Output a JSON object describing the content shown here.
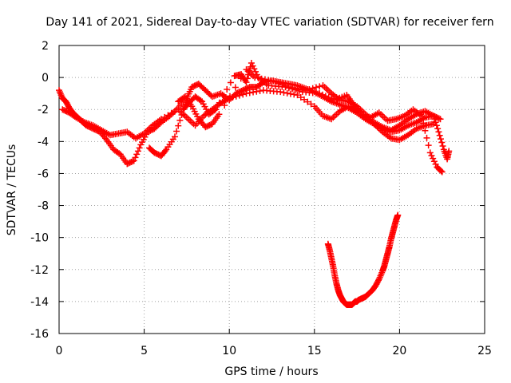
{
  "chart_data": {
    "type": "scatter",
    "title": "Day 141 of 2021, Sidereal Day-to-day VTEC variation (SDTVAR) for receiver fern",
    "xlabel": "GPS time / hours",
    "ylabel": "SDTVAR / TECUs",
    "xlim": [
      0,
      25
    ],
    "ylim": [
      -16,
      2
    ],
    "grid": true,
    "xticks": [
      0,
      5,
      10,
      15,
      20,
      25
    ],
    "xtick_labels": [
      "0",
      "5",
      "10",
      "15",
      "20",
      "25"
    ],
    "yticks": [
      2,
      0,
      -2,
      -4,
      -6,
      -8,
      -10,
      -12,
      -14,
      -16
    ],
    "ytick_labels": [
      "2",
      "0",
      "-2",
      "-4",
      "-6",
      "-8",
      "-10",
      "-12",
      "-14",
      "-16"
    ],
    "marker": "+",
    "marker_color": "#ff0000",
    "series": [
      {
        "name": "upper_trace_a",
        "x": [
          0.0,
          0.2,
          0.4,
          0.6,
          0.8,
          1.0,
          1.3,
          1.6,
          2.0,
          2.4,
          2.8,
          3.2,
          3.6,
          4.0,
          4.4,
          4.8,
          5.2,
          5.6,
          6.0,
          6.5,
          7.0,
          7.5,
          7.8,
          8.2,
          8.6,
          9.0,
          9.5,
          10.0,
          10.4,
          10.8,
          11.2,
          11.6,
          12.0,
          12.5,
          13.0,
          13.5,
          14.0,
          14.5,
          15.0,
          15.5,
          16.0,
          16.5,
          17.0,
          17.5,
          18.0,
          18.5,
          19.0,
          19.5,
          20.0,
          20.5,
          21.0,
          21.5,
          22.0,
          22.4
        ],
        "y": [
          -0.8,
          -1.3,
          -1.5,
          -1.9,
          -2.2,
          -2.4,
          -2.7,
          -3.0,
          -3.2,
          -3.4,
          -3.9,
          -4.5,
          -4.8,
          -5.4,
          -5.2,
          -4.2,
          -3.4,
          -3.2,
          -2.8,
          -2.4,
          -1.9,
          -1.3,
          -0.6,
          -0.4,
          -0.8,
          -1.2,
          -1.0,
          -1.4,
          -1.0,
          -0.8,
          -0.6,
          -0.6,
          -0.3,
          -0.2,
          -0.3,
          -0.4,
          -0.5,
          -0.7,
          -0.9,
          -1.2,
          -1.5,
          -1.7,
          -1.9,
          -2.2,
          -2.6,
          -2.9,
          -3.2,
          -3.4,
          -3.3,
          -3.0,
          -2.8,
          -2.5,
          -2.4,
          -2.6
        ]
      },
      {
        "name": "upper_trace_b",
        "x": [
          0.2,
          0.6,
          1.0,
          1.5,
          2.0,
          2.5,
          3.0,
          3.5,
          4.0,
          4.5,
          5.0,
          5.5,
          6.0,
          7.0,
          7.5,
          8.0,
          8.5,
          9.0,
          9.5,
          10.0,
          11.0,
          12.0,
          13.0,
          14.0,
          15.0,
          15.5,
          16.0,
          16.5,
          17.0,
          17.5,
          18.0,
          18.5,
          19.0,
          19.5,
          20.0,
          20.5,
          21.0,
          21.5,
          22.0
        ],
        "y": [
          -2.0,
          -2.2,
          -2.5,
          -2.8,
          -3.0,
          -3.3,
          -3.6,
          -3.5,
          -3.4,
          -3.8,
          -3.5,
          -3.0,
          -2.6,
          -2.0,
          -2.5,
          -3.0,
          -2.4,
          -2.0,
          -1.6,
          -1.3,
          -1.0,
          -0.8,
          -0.9,
          -1.1,
          -1.8,
          -2.4,
          -2.6,
          -2.1,
          -1.8,
          -2.0,
          -2.5,
          -2.9,
          -3.4,
          -3.8,
          -3.9,
          -3.6,
          -3.2,
          -3.0,
          -2.9
        ]
      },
      {
        "name": "upper_trace_c",
        "x": [
          7.0,
          7.4,
          7.8,
          8.2,
          8.6,
          9.0,
          9.4,
          11.0,
          11.5,
          12.5,
          13.5,
          14.5,
          15.5,
          16.0,
          16.5,
          17.0,
          17.5,
          18.0,
          18.5,
          19.0,
          19.5,
          20.0,
          20.5,
          21.0,
          21.5,
          22.0,
          22.3,
          22.6,
          22.8,
          22.9
        ],
        "y": [
          -1.5,
          -1.2,
          -1.8,
          -2.6,
          -3.1,
          -2.9,
          -2.3,
          0.5,
          0.0,
          -0.2,
          -0.6,
          -0.8,
          -0.5,
          -1.0,
          -1.4,
          -1.5,
          -1.8,
          -2.3,
          -2.8,
          -3.1,
          -3.3,
          -3.0,
          -2.6,
          -2.3,
          -2.1,
          -2.4,
          -3.4,
          -4.5,
          -5.1,
          -4.6
        ]
      },
      {
        "name": "upper_trace_d",
        "x": [
          5.3,
          5.6,
          6.0,
          6.3,
          6.8,
          7.3,
          7.6,
          8.0,
          8.4,
          8.8,
          9.2,
          10.3,
          10.7,
          11.0,
          11.3,
          11.7,
          12.3,
          13.3,
          14.3,
          15.3,
          16.2,
          16.9,
          17.3,
          17.8,
          18.3,
          18.8,
          19.3,
          19.8,
          20.3,
          20.8,
          21.3,
          21.8,
          22.2,
          22.5
        ],
        "y": [
          -4.4,
          -4.7,
          -4.9,
          -4.5,
          -3.7,
          -2.0,
          -1.6,
          -1.2,
          -1.5,
          -2.3,
          -2.0,
          0.1,
          0.2,
          -0.3,
          0.9,
          0.0,
          -0.5,
          -0.6,
          -0.9,
          -1.0,
          -1.4,
          -1.1,
          -1.7,
          -2.3,
          -2.5,
          -2.2,
          -2.7,
          -2.6,
          -2.4,
          -2.0,
          -2.4,
          -4.7,
          -5.6,
          -5.9
        ]
      },
      {
        "name": "lower_trace",
        "x": [
          15.8,
          15.9,
          16.0,
          16.1,
          16.2,
          16.3,
          16.4,
          16.5,
          16.6,
          16.7,
          16.8,
          16.9,
          17.0,
          17.1,
          17.2,
          17.3,
          17.4,
          17.5,
          17.6,
          17.8,
          18.0,
          18.2,
          18.4,
          18.6,
          18.8,
          19.0,
          19.1,
          19.2,
          19.3,
          19.4,
          19.5,
          19.6,
          19.7,
          19.8,
          19.9
        ],
        "y": [
          -10.4,
          -10.8,
          -11.3,
          -11.8,
          -12.4,
          -12.9,
          -13.3,
          -13.6,
          -13.8,
          -14.0,
          -14.1,
          -14.2,
          -14.2,
          -14.2,
          -14.2,
          -14.1,
          -14.0,
          -14.0,
          -13.9,
          -13.8,
          -13.7,
          -13.5,
          -13.3,
          -13.0,
          -12.6,
          -12.1,
          -11.8,
          -11.4,
          -11.0,
          -10.6,
          -10.1,
          -9.7,
          -9.3,
          -8.9,
          -8.6
        ]
      }
    ]
  }
}
